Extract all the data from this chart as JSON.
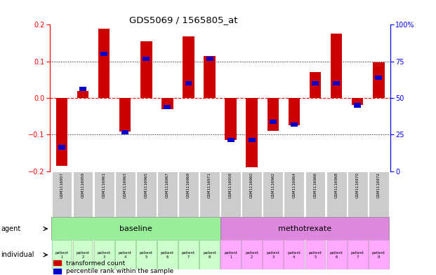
{
  "title": "GDS5069 / 1565805_at",
  "samples": [
    "GSM1116957",
    "GSM1116959",
    "GSM1116961",
    "GSM1116963",
    "GSM1116965",
    "GSM1116967",
    "GSM1116969",
    "GSM1116971",
    "GSM1116958",
    "GSM1116960",
    "GSM1116962",
    "GSM1116964",
    "GSM1116966",
    "GSM1116968",
    "GSM1116970",
    "GSM1116972"
  ],
  "red_values": [
    -0.185,
    0.02,
    0.19,
    -0.092,
    0.155,
    -0.03,
    0.168,
    0.115,
    -0.115,
    -0.19,
    -0.09,
    -0.075,
    0.07,
    0.175,
    -0.02,
    0.098
  ],
  "blue_values": [
    -0.135,
    0.025,
    0.12,
    -0.093,
    0.107,
    -0.025,
    0.04,
    0.107,
    -0.115,
    -0.115,
    -0.065,
    -0.072,
    0.04,
    0.04,
    -0.02,
    0.055
  ],
  "ylim_left": [
    -0.2,
    0.2
  ],
  "ylim_right": [
    0,
    100
  ],
  "yticks_left": [
    -0.2,
    -0.1,
    0.0,
    0.1,
    0.2
  ],
  "yticks_right": [
    0,
    25,
    50,
    75,
    100
  ],
  "ytick_labels_right": [
    "0",
    "25",
    "50",
    "75",
    "100%"
  ],
  "agent_baseline_label": "baseline",
  "agent_methotrexate_label": "methotrexate",
  "individual_labels_baseline": [
    "patient\n1",
    "patient\n2",
    "patient\n3",
    "patient\n4",
    "patient\n5",
    "patient\n6",
    "patient\n7",
    "patient\n8"
  ],
  "individual_labels_methotrexate": [
    "patient\n1",
    "patient\n2",
    "patient\n3",
    "patient\n4",
    "patient\n5",
    "patient\n6",
    "patient\n7",
    "patient\n8"
  ],
  "color_red": "#cc0000",
  "color_blue": "#0000cc",
  "color_baseline_bg": "#99ee99",
  "color_methotrexate_bg": "#dd88dd",
  "color_sample_bg": "#cccccc",
  "color_individual_bg_baseline": "#ccffcc",
  "color_individual_bg_methotrexate": "#ffaaff",
  "legend_red": "transformed count",
  "legend_blue": "percentile rank within the sample",
  "bar_width": 0.55
}
